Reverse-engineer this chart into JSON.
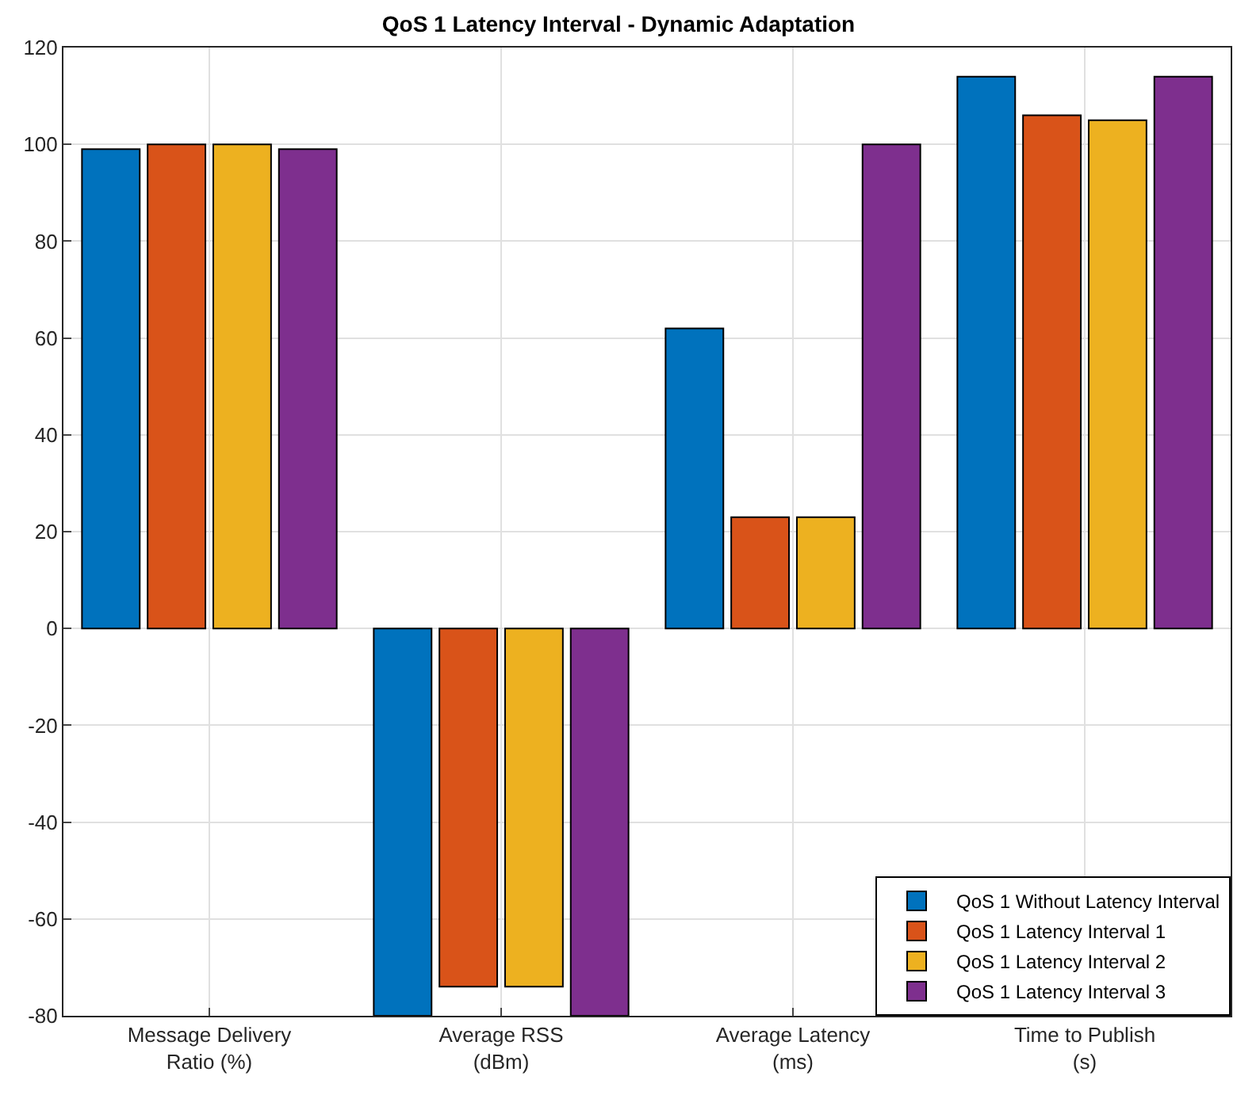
{
  "chart_data": {
    "type": "bar",
    "title": "QoS 1 Latency Interval - Dynamic Adaptation",
    "categories": [
      "Message Delivery\nRatio (%)",
      "Average RSS\n(dBm)",
      "Average Latency\n(ms)",
      "Time to Publish\n(s)"
    ],
    "series": [
      {
        "name": "QoS 1 Without Latency Interval",
        "color": "#0072bd",
        "values": [
          99,
          -80,
          62,
          114
        ]
      },
      {
        "name": "QoS 1 Latency Interval 1",
        "color": "#d95319",
        "values": [
          100,
          -74,
          23,
          106
        ]
      },
      {
        "name": "QoS 1 Latency Interval 2",
        "color": "#edb120",
        "values": [
          100,
          -74,
          23,
          105
        ]
      },
      {
        "name": "QoS 1 Latency Interval 3",
        "color": "#7e2f8e",
        "values": [
          99,
          -80,
          100,
          114
        ]
      }
    ],
    "ylim": [
      -80,
      120
    ],
    "yticks": [
      -80,
      -60,
      -40,
      -20,
      0,
      20,
      40,
      60,
      80,
      100,
      120
    ],
    "grid": true,
    "legend": "bottom right"
  }
}
